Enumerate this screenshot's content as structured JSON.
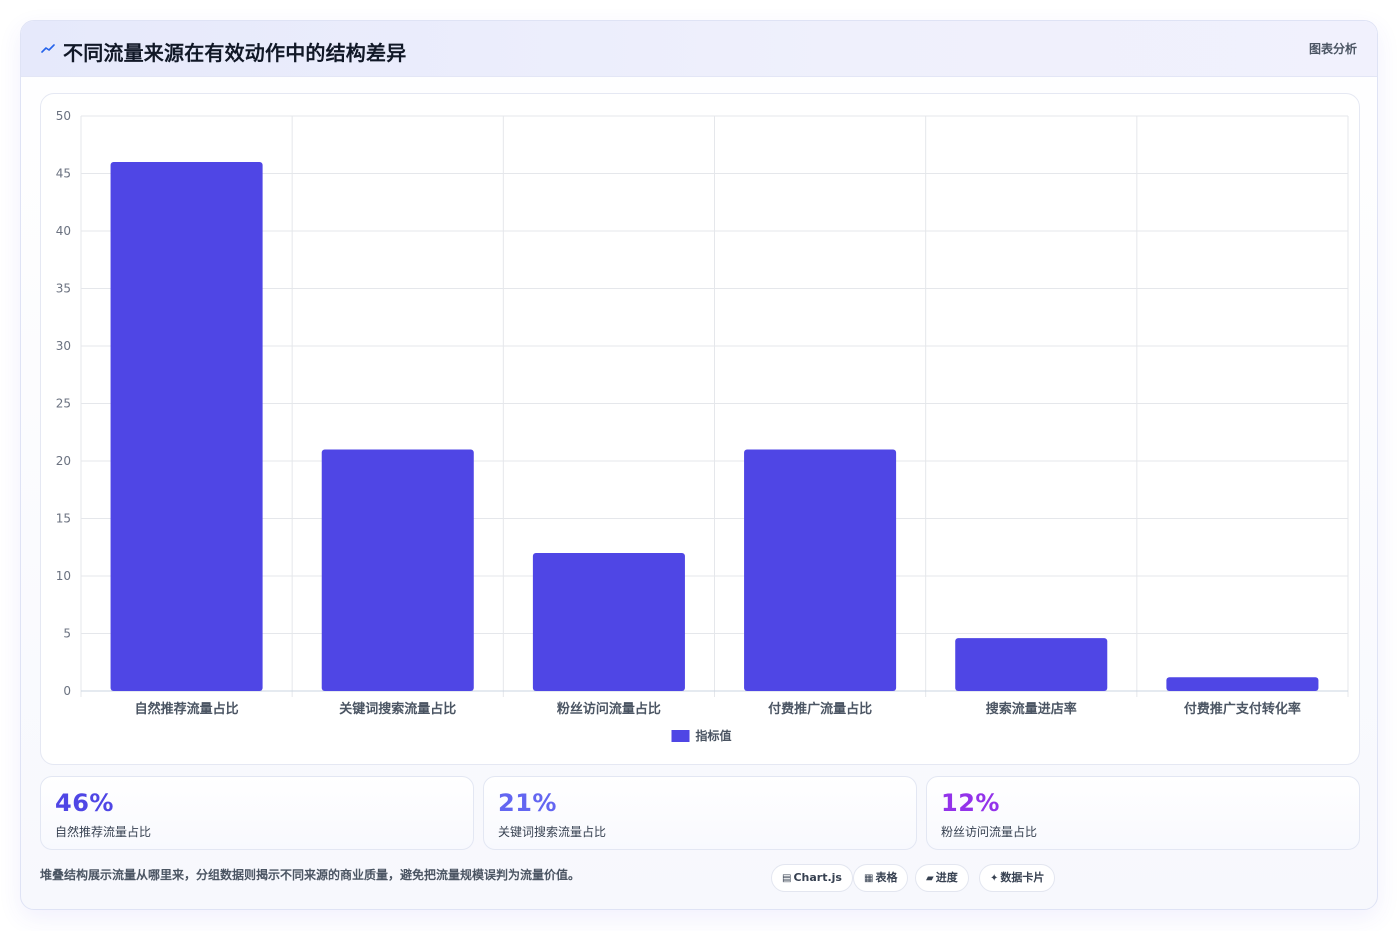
{
  "header": {
    "title": "不同流量来源在有效动作中的结构差异",
    "tag": "图表分析",
    "icon": "trend-icon"
  },
  "colors": {
    "bar": "#4f46e5",
    "stat1": "#4f46e5",
    "stat2": "#6366f1",
    "stat3": "#9333ea"
  },
  "chart_data": {
    "type": "bar",
    "categories": [
      "自然推荐流量占比",
      "关键词搜索流量占比",
      "粉丝访问流量占比",
      "付费推广流量占比",
      "搜索流量进店率",
      "付费推广支付转化率"
    ],
    "series": [
      {
        "name": "指标值",
        "values": [
          46,
          21,
          12,
          21,
          4.6,
          1.2
        ]
      }
    ],
    "ylim": [
      0,
      50
    ],
    "yticks": [
      "0",
      "5",
      "10",
      "15",
      "20",
      "25",
      "30",
      "35",
      "40",
      "45",
      "50"
    ],
    "grid": true,
    "legend": "bottom"
  },
  "stats": [
    {
      "value": "46%",
      "label": "自然推荐流量占比"
    },
    {
      "value": "21%",
      "label": "关键词搜索流量占比"
    },
    {
      "value": "12%",
      "label": "粉丝访问流量占比"
    }
  ],
  "footer": {
    "note": "堆叠结构展示流量从哪里来，分组数据则揭示不同来源的商业质量，避免把流量规模误判为流量价值。",
    "chips": [
      {
        "glyph": "▤",
        "label": "Chart.js"
      },
      {
        "glyph": "▦",
        "label": "表格"
      },
      {
        "glyph": "▰",
        "label": "进度"
      },
      {
        "glyph": "✦",
        "label": "数据卡片"
      }
    ]
  }
}
